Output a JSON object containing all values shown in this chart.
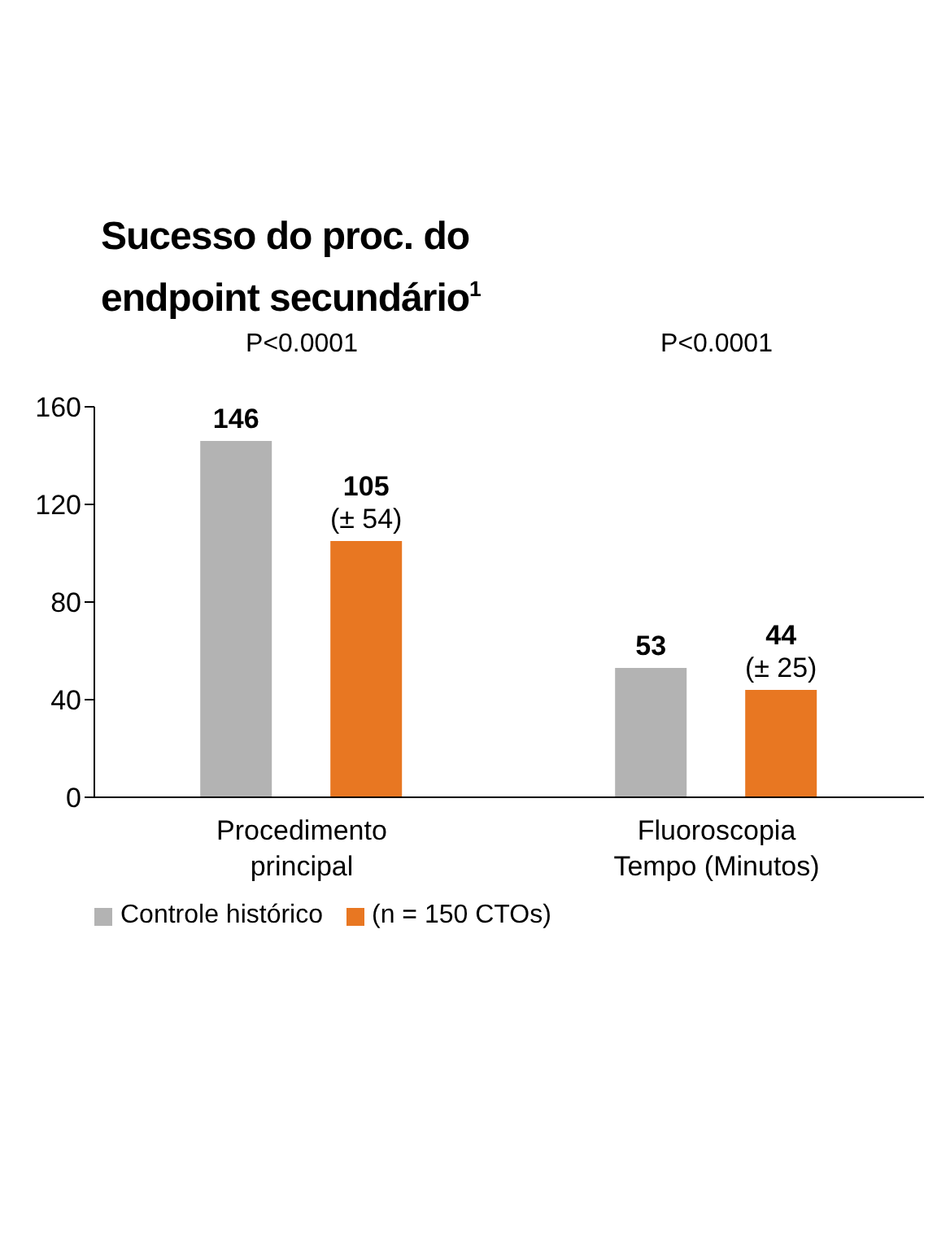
{
  "chart_data": {
    "type": "bar",
    "title": "Sucesso do proc. do endpoint secundário$^{1}$",
    "categories": [
      "Procedimento principal",
      "Fluoroscopia Tempo (Minutos)"
    ],
    "series": [
      {
        "name": "Controle histórico",
        "color": "#b3b3b3",
        "values": [
          146,
          53
        ],
        "value_labels": [
          "146",
          "53"
        ]
      },
      {
        "name": "(n = 150 CTOs)",
        "color": "#e87722",
        "values": [
          105,
          44
        ],
        "value_labels": [
          "105\n(± 54)",
          "44\n(± 25)"
        ]
      }
    ],
    "ylim": [
      0,
      160
    ],
    "yticks": [
      0,
      40,
      80,
      120,
      160
    ],
    "grid": false,
    "legend": "bottom",
    "annotations": [
      "P<0.0001",
      "P<0.0001"
    ]
  }
}
